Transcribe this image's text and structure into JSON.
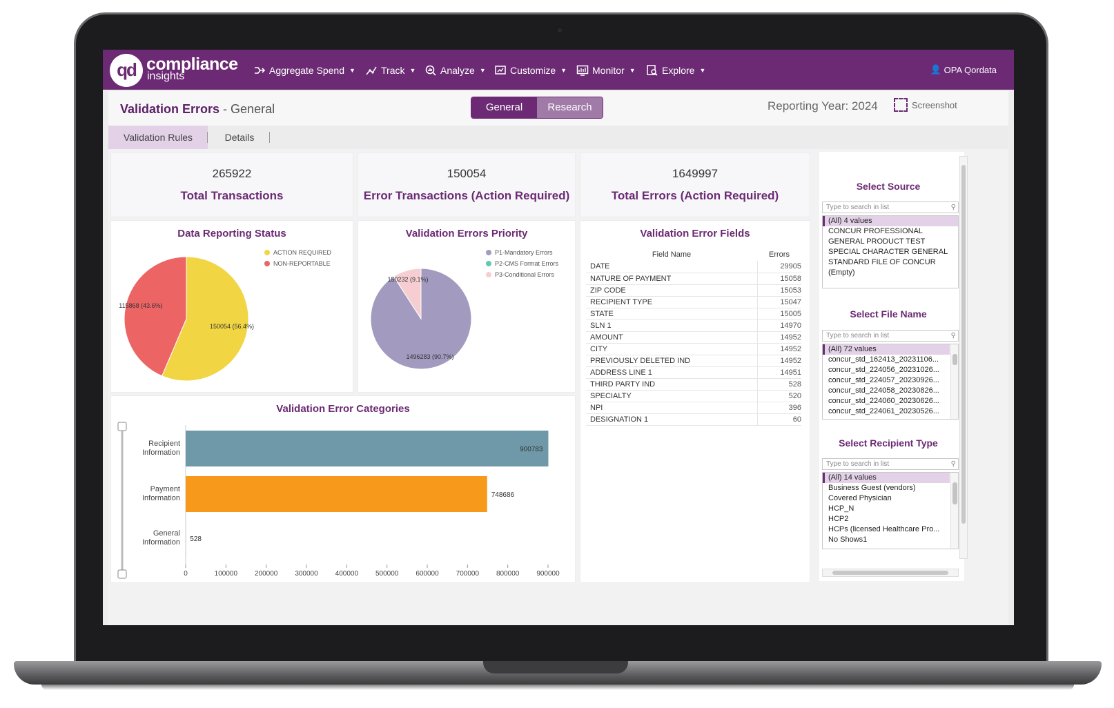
{
  "nav": {
    "logo_mark": "qd",
    "logo_line1": "compliance",
    "logo_line2": "insights",
    "items": [
      {
        "label": "Aggregate Spend",
        "icon": "flow-icon"
      },
      {
        "label": "Track",
        "icon": "track-icon"
      },
      {
        "label": "Analyze",
        "icon": "analyze-icon"
      },
      {
        "label": "Customize",
        "icon": "customize-icon"
      },
      {
        "label": "Monitor",
        "icon": "monitor-icon"
      },
      {
        "label": "Explore",
        "icon": "explore-icon"
      }
    ],
    "user": "OPA Qordata"
  },
  "header": {
    "title": "Validation Errors",
    "subtitle": " - General",
    "toggle": {
      "general": "General",
      "research": "Research"
    },
    "reporting_year": "Reporting Year: 2024",
    "screenshot": "Screenshot"
  },
  "subtabs": {
    "rules": "Validation Rules",
    "details": "Details"
  },
  "kpis": [
    {
      "value": "265922",
      "label": "Total Transactions"
    },
    {
      "value": "150054",
      "label": "Error Transactions (Action Required)"
    },
    {
      "value": "1649997",
      "label": "Total Errors (Action Required)"
    }
  ],
  "colors": {
    "brand": "#6b2a73",
    "action_required": "#f1d542",
    "non_reportable": "#ec6464",
    "p1": "#a29bbf",
    "p2": "#64c7b6",
    "p3": "#f6ced2",
    "bar_recipient": "#6f99a8",
    "bar_payment": "#f79a1b"
  },
  "chart_data": [
    {
      "type": "pie",
      "title": "Data Reporting Status",
      "legend": [
        "ACTION REQUIRED",
        "NON-REPORTABLE"
      ],
      "slices": [
        {
          "name": "ACTION REQUIRED",
          "value": 150054,
          "label": "150054 (56.4%)"
        },
        {
          "name": "NON-REPORTABLE",
          "value": 115868,
          "label": "115868 (43.6%)"
        }
      ]
    },
    {
      "type": "pie",
      "title": "Validation Errors Priority",
      "legend": [
        "P1-Mandatory Errors",
        "P2-CMS Format Errors",
        "P3-Conditional Errors"
      ],
      "slices": [
        {
          "name": "P1-Mandatory Errors",
          "value": 1496283,
          "label": "1496283 (90.7%)"
        },
        {
          "name": "P3-Conditional Errors",
          "value": 150232,
          "label": "150232 (9.1%)"
        }
      ]
    },
    {
      "type": "bar",
      "orientation": "horizontal",
      "title": "Validation Error Categories",
      "categories": [
        "Recipient Information",
        "Payment Information",
        "General Information"
      ],
      "values": [
        900783,
        748686,
        528
      ],
      "xticks": [
        "0",
        "100000",
        "200000",
        "300000",
        "400000",
        "500000",
        "600000",
        "700000",
        "800000",
        "900000"
      ],
      "xlim": [
        0,
        900000
      ]
    }
  ],
  "fields_table": {
    "title": "Validation Error Fields",
    "headers": [
      "Field Name",
      "Errors"
    ],
    "rows": [
      [
        "DATE",
        "29905"
      ],
      [
        "NATURE OF PAYMENT",
        "15058"
      ],
      [
        "ZIP CODE",
        "15053"
      ],
      [
        "RECIPIENT TYPE",
        "15047"
      ],
      [
        "STATE",
        "15005"
      ],
      [
        "SLN 1",
        "14970"
      ],
      [
        "AMOUNT",
        "14952"
      ],
      [
        "CITY",
        "14952"
      ],
      [
        "PREVIOUSLY DELETED IND",
        "14952"
      ],
      [
        "ADDRESS LINE 1",
        "14951"
      ],
      [
        "THIRD PARTY IND",
        "528"
      ],
      [
        "SPECIALTY",
        "520"
      ],
      [
        "NPI",
        "396"
      ],
      [
        "DESIGNATION 1",
        "60"
      ]
    ]
  },
  "filters": {
    "placeholder": "Type to search in list",
    "source": {
      "title": "Select Source",
      "options": [
        "(All) 4 values",
        "CONCUR PROFESSIONAL",
        "GENERAL PRODUCT TEST",
        "SPECIAL CHARACTER GENERAL",
        "STANDARD FILE OF CONCUR",
        "(Empty)"
      ]
    },
    "file_name": {
      "title": "Select File Name",
      "options": [
        "(All) 72 values",
        "concur_std_162413_20231106...",
        "concur_std_224056_20231026...",
        "concur_std_224057_20230926...",
        "concur_std_224058_20230826...",
        "concur_std_224060_20230626...",
        "concur_std_224061_20230526..."
      ]
    },
    "recipient_type": {
      "title": "Select Recipient Type",
      "options": [
        "(All) 14 values",
        "Business Guest (vendors)",
        "Covered Physician",
        "HCP_N",
        "HCP2",
        "HCPs (licensed Healthcare Pro...",
        "No Shows1"
      ]
    }
  }
}
